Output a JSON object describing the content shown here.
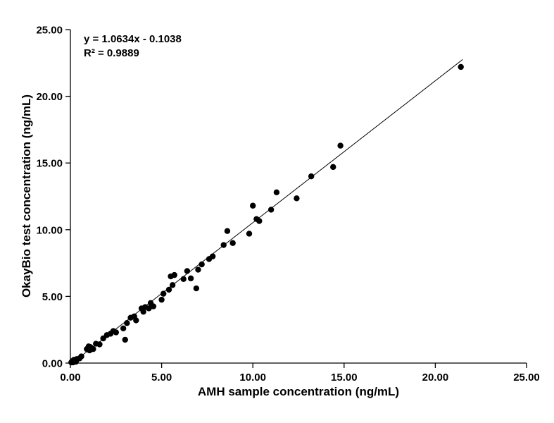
{
  "chart_data": {
    "type": "scatter",
    "title": "",
    "xlabel": "AMH sample concentration (ng/mL)",
    "ylabel": "OkayBio test concentration (ng/mL)",
    "xlim": [
      0,
      25
    ],
    "ylim": [
      0,
      25
    ],
    "xticks": [
      0,
      5,
      10,
      15,
      20,
      25
    ],
    "yticks": [
      0,
      5,
      10,
      15,
      20,
      25
    ],
    "tick_decimals": 2,
    "grid": false,
    "legend": "none",
    "point_color": "#000000",
    "line_color": "#000000",
    "annotation": {
      "equation": "y = 1.0634x - 0.1038",
      "r_squared": "R² = 0.9889"
    },
    "trendline": {
      "slope": 1.0634,
      "intercept": -0.1038,
      "x_start": 0.1,
      "x_end": 21.5
    },
    "points": [
      [
        0.05,
        0.05
      ],
      [
        0.1,
        0.15
      ],
      [
        0.15,
        0.05
      ],
      [
        0.2,
        0.25
      ],
      [
        0.3,
        0.1
      ],
      [
        0.35,
        0.3
      ],
      [
        0.5,
        0.35
      ],
      [
        0.6,
        0.5
      ],
      [
        0.9,
        1.05
      ],
      [
        1.0,
        1.25
      ],
      [
        1.05,
        0.95
      ],
      [
        1.1,
        1.2
      ],
      [
        1.25,
        1.05
      ],
      [
        1.4,
        1.45
      ],
      [
        1.6,
        1.4
      ],
      [
        1.8,
        1.85
      ],
      [
        2.0,
        2.1
      ],
      [
        2.2,
        2.2
      ],
      [
        2.35,
        2.4
      ],
      [
        2.5,
        2.3
      ],
      [
        2.9,
        2.6
      ],
      [
        3.0,
        1.75
      ],
      [
        3.1,
        3.0
      ],
      [
        3.3,
        3.4
      ],
      [
        3.5,
        3.5
      ],
      [
        3.6,
        3.2
      ],
      [
        3.9,
        4.1
      ],
      [
        4.0,
        3.85
      ],
      [
        4.1,
        4.2
      ],
      [
        4.3,
        4.1
      ],
      [
        4.4,
        4.5
      ],
      [
        4.55,
        4.25
      ],
      [
        5.0,
        4.75
      ],
      [
        5.1,
        5.2
      ],
      [
        5.4,
        5.5
      ],
      [
        5.5,
        6.5
      ],
      [
        5.6,
        5.85
      ],
      [
        5.7,
        6.6
      ],
      [
        6.2,
        6.3
      ],
      [
        6.4,
        6.9
      ],
      [
        6.6,
        6.35
      ],
      [
        6.9,
        5.6
      ],
      [
        7.0,
        7.0
      ],
      [
        7.2,
        7.4
      ],
      [
        7.6,
        7.8
      ],
      [
        7.8,
        8.0
      ],
      [
        8.4,
        8.85
      ],
      [
        8.6,
        9.9
      ],
      [
        8.9,
        9.0
      ],
      [
        9.8,
        9.7
      ],
      [
        10.0,
        11.8
      ],
      [
        10.2,
        10.8
      ],
      [
        10.35,
        10.65
      ],
      [
        11.0,
        11.5
      ],
      [
        11.3,
        12.8
      ],
      [
        12.4,
        12.35
      ],
      [
        13.2,
        14.0
      ],
      [
        14.4,
        14.7
      ],
      [
        14.8,
        16.3
      ],
      [
        21.4,
        22.2
      ]
    ]
  }
}
